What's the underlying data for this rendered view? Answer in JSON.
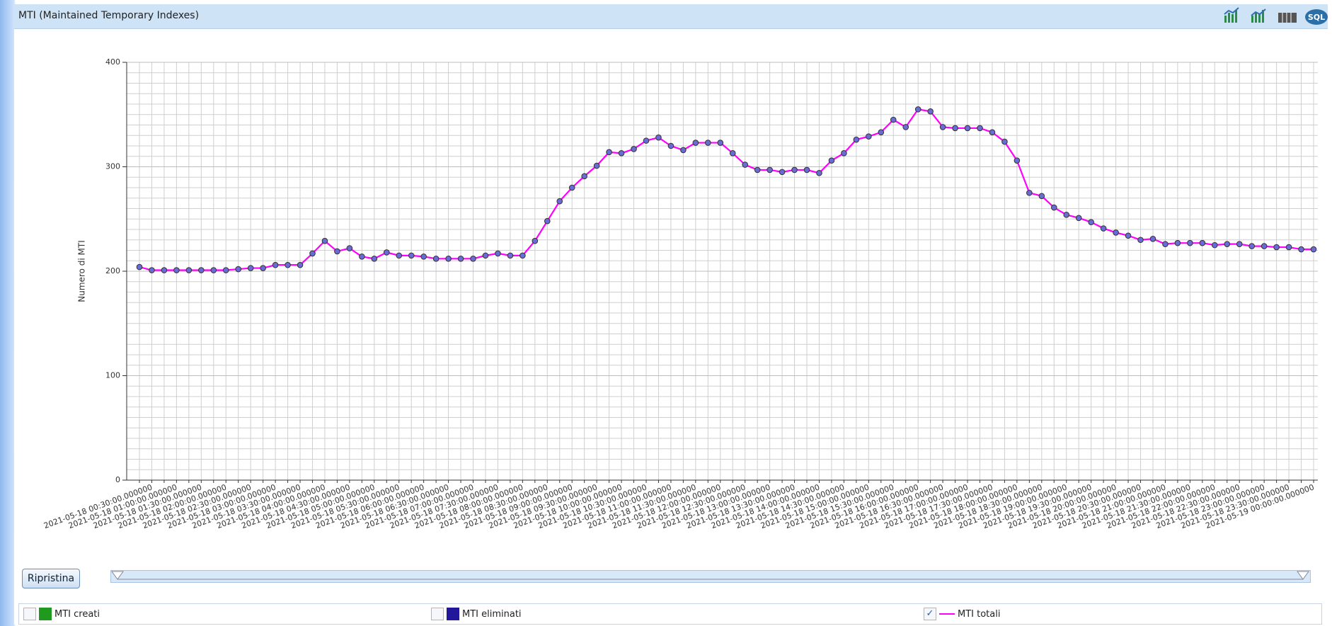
{
  "panel_title": "MTI (Maintained Temporary Indexes)",
  "toolbar": {
    "sql_label": "SQL"
  },
  "reset_button": "Ripristina",
  "legend_items": [
    {
      "name": "MTI creati",
      "color": "#1f9a1f",
      "checked": false
    },
    {
      "name": "MTI eliminati",
      "color": "#22169a",
      "checked": false
    },
    {
      "name": "MTI totali",
      "color": "#ff00ff",
      "checked": true
    }
  ],
  "chart_data": {
    "type": "line",
    "y_label": "Numero di MTI",
    "categories": [
      "2021-05-18 00:30:00.000000",
      null,
      "2021-05-18 01:00:00.000000",
      null,
      "2021-05-18 01:30:00.000000",
      null,
      "2021-05-18 02:00:00.000000",
      null,
      "2021-05-18 02:30:00.000000",
      null,
      "2021-05-18 03:00:00.000000",
      null,
      "2021-05-18 03:30:00.000000",
      null,
      "2021-05-18 04:00:00.000000",
      null,
      "2021-05-18 04:30:00.000000",
      null,
      "2021-05-18 05:00:00.000000",
      null,
      "2021-05-18 05:30:00.000000",
      null,
      "2021-05-18 06:00:00.000000",
      null,
      "2021-05-18 06:30:00.000000",
      null,
      "2021-05-18 07:00:00.000000",
      null,
      "2021-05-18 07:30:00.000000",
      null,
      "2021-05-18 08:00:00.000000",
      null,
      "2021-05-18 08:30:00.000000",
      null,
      "2021-05-18 09:00:00.000000",
      null,
      "2021-05-18 09:30:00.000000",
      null,
      "2021-05-18 10:00:00.000000",
      null,
      "2021-05-18 10:30:00.000000",
      null,
      "2021-05-18 11:00:00.000000",
      null,
      "2021-05-18 11:30:00.000000",
      null,
      "2021-05-18 12:00:00.000000",
      null,
      "2021-05-18 12:30:00.000000",
      null,
      "2021-05-18 13:00:00.000000",
      null,
      "2021-05-18 13:30:00.000000",
      null,
      "2021-05-18 14:00:00.000000",
      null,
      "2021-05-18 14:30:00.000000",
      null,
      "2021-05-18 15:00:00.000000",
      null,
      "2021-05-18 15:30:00.000000",
      null,
      "2021-05-18 16:00:00.000000",
      null,
      "2021-05-18 16:30:00.000000",
      null,
      "2021-05-18 17:00:00.000000",
      null,
      "2021-05-18 17:30:00.000000",
      null,
      "2021-05-18 18:00:00.000000",
      null,
      "2021-05-18 18:30:00.000000",
      null,
      "2021-05-18 19:00:00.000000",
      null,
      "2021-05-18 19:30:00.000000",
      null,
      "2021-05-18 20:00:00.000000",
      null,
      "2021-05-18 20:30:00.000000",
      null,
      "2021-05-18 21:00:00.000000",
      null,
      "2021-05-18 21:30:00.000000",
      null,
      "2021-05-18 22:00:00.000000",
      null,
      "2021-05-18 22:30:00.000000",
      null,
      "2021-05-18 23:00:00.000000",
      null,
      "2021-05-18 23:30:00.000000",
      null,
      "2021-05-19 00:00:00.000000",
      null
    ],
    "series": [
      {
        "name": "MTI totali",
        "color": "#ff00ff",
        "marker_color": "#6b6bd6",
        "values": [
          204,
          201,
          201,
          201,
          201,
          201,
          201,
          201,
          202,
          203,
          203,
          206,
          206,
          206,
          217,
          229,
          219,
          222,
          214,
          212,
          218,
          215,
          215,
          214,
          212,
          212,
          212,
          212,
          215,
          217,
          215,
          215,
          229,
          248,
          267,
          280,
          291,
          301,
          314,
          313,
          317,
          325,
          328,
          320,
          316,
          323,
          323,
          323,
          313,
          302,
          297,
          297,
          295,
          297,
          297,
          294,
          306,
          313,
          326,
          329,
          333,
          345,
          338,
          355,
          353,
          338,
          337,
          337,
          337,
          333,
          324,
          306,
          275,
          272,
          261,
          254,
          251,
          247,
          241,
          237,
          234,
          230,
          231,
          226,
          227,
          227,
          227,
          225,
          226,
          226,
          224,
          224,
          223,
          223,
          221,
          221
        ]
      }
    ],
    "ylim": [
      0,
      400
    ],
    "yticks": [
      0,
      100,
      200,
      300,
      400
    ],
    "minor_yticks": [
      10,
      20,
      30,
      40,
      50,
      60,
      70,
      80,
      90,
      110,
      120,
      130,
      140,
      150,
      160,
      170,
      180,
      190,
      210,
      220,
      230,
      240,
      250,
      260,
      270,
      280,
      290,
      310,
      320,
      330,
      340,
      350,
      360,
      370,
      380,
      390
    ],
    "grid": true
  }
}
